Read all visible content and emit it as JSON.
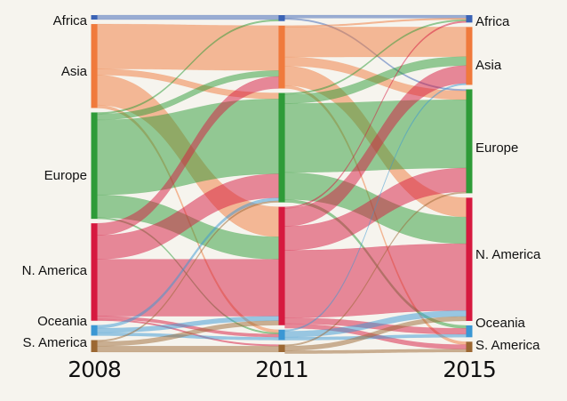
{
  "years": [
    "2008",
    "2011",
    "2015"
  ],
  "regions": [
    {
      "name": "Africa",
      "color": "#3b63b5"
    },
    {
      "name": "Asia",
      "color": "#f07a3c"
    },
    {
      "name": "Europe",
      "color": "#2e9b38"
    },
    {
      "name": "N. America",
      "color": "#d6193f"
    },
    {
      "name": "Oceania",
      "color": "#3a97d4"
    },
    {
      "name": "S. America",
      "color": "#9c6833"
    }
  ],
  "labels": {
    "left": [
      "Africa",
      "Asia",
      "Europe",
      "N. America",
      "Oceania",
      "S. America"
    ],
    "right": [
      "Africa",
      "Asia",
      "Europe",
      "N. America",
      "Oceania",
      "S. America"
    ]
  },
  "flows": {
    "2008-2011": [
      {
        "from": "Africa",
        "to": "Africa",
        "value": 3
      },
      {
        "from": "Asia",
        "to": "Asia",
        "value": 30
      },
      {
        "from": "Asia",
        "to": "Europe",
        "value": 4
      },
      {
        "from": "Asia",
        "to": "N. America",
        "value": 20
      },
      {
        "from": "Asia",
        "to": "Oceania",
        "value": 2
      },
      {
        "from": "Europe",
        "to": "Africa",
        "value": 1
      },
      {
        "from": "Europe",
        "to": "Asia",
        "value": 4
      },
      {
        "from": "Europe",
        "to": "Europe",
        "value": 50
      },
      {
        "from": "Europe",
        "to": "N. America",
        "value": 15
      },
      {
        "from": "Europe",
        "to": "Oceania",
        "value": 1
      },
      {
        "from": "N. America",
        "to": "Asia",
        "value": 8
      },
      {
        "from": "N. America",
        "to": "Europe",
        "value": 16
      },
      {
        "from": "N. America",
        "to": "N. America",
        "value": 38
      },
      {
        "from": "N. America",
        "to": "Oceania",
        "value": 2
      },
      {
        "from": "N. America",
        "to": "S. America",
        "value": 1
      },
      {
        "from": "Oceania",
        "to": "Europe",
        "value": 2
      },
      {
        "from": "Oceania",
        "to": "N. America",
        "value": 3
      },
      {
        "from": "Oceania",
        "to": "Oceania",
        "value": 2
      },
      {
        "from": "S. America",
        "to": "Europe",
        "value": 1
      },
      {
        "from": "S. America",
        "to": "N. America",
        "value": 3
      },
      {
        "from": "S. America",
        "to": "S. America",
        "value": 4
      }
    ],
    "2011-2015": [
      {
        "from": "Africa",
        "to": "Africa",
        "value": 2
      },
      {
        "from": "Africa",
        "to": "Europe",
        "value": 1
      },
      {
        "from": "Asia",
        "to": "Africa",
        "value": 1
      },
      {
        "from": "Asia",
        "to": "Asia",
        "value": 20
      },
      {
        "from": "Asia",
        "to": "Europe",
        "value": 6
      },
      {
        "from": "Asia",
        "to": "N. America",
        "value": 13
      },
      {
        "from": "Asia",
        "to": "S. America",
        "value": 2
      },
      {
        "from": "Europe",
        "to": "Africa",
        "value": 1
      },
      {
        "from": "Europe",
        "to": "Asia",
        "value": 6
      },
      {
        "from": "Europe",
        "to": "Europe",
        "value": 46
      },
      {
        "from": "Europe",
        "to": "N. America",
        "value": 18
      },
      {
        "from": "Europe",
        "to": "Oceania",
        "value": 2
      },
      {
        "from": "N. America",
        "to": "Africa",
        "value": 1
      },
      {
        "from": "N. America",
        "to": "Asia",
        "value": 12
      },
      {
        "from": "N. America",
        "to": "Europe",
        "value": 16
      },
      {
        "from": "N. America",
        "to": "N. America",
        "value": 45
      },
      {
        "from": "N. America",
        "to": "Oceania",
        "value": 4
      },
      {
        "from": "N. America",
        "to": "S. America",
        "value": 3
      },
      {
        "from": "Oceania",
        "to": "Asia",
        "value": 1
      },
      {
        "from": "Oceania",
        "to": "N. America",
        "value": 4
      },
      {
        "from": "Oceania",
        "to": "Oceania",
        "value": 2
      },
      {
        "from": "S. America",
        "to": "Europe",
        "value": 1
      },
      {
        "from": "S. America",
        "to": "N. America",
        "value": 3
      },
      {
        "from": "S. America",
        "to": "S. America",
        "value": 2
      }
    ]
  }
}
